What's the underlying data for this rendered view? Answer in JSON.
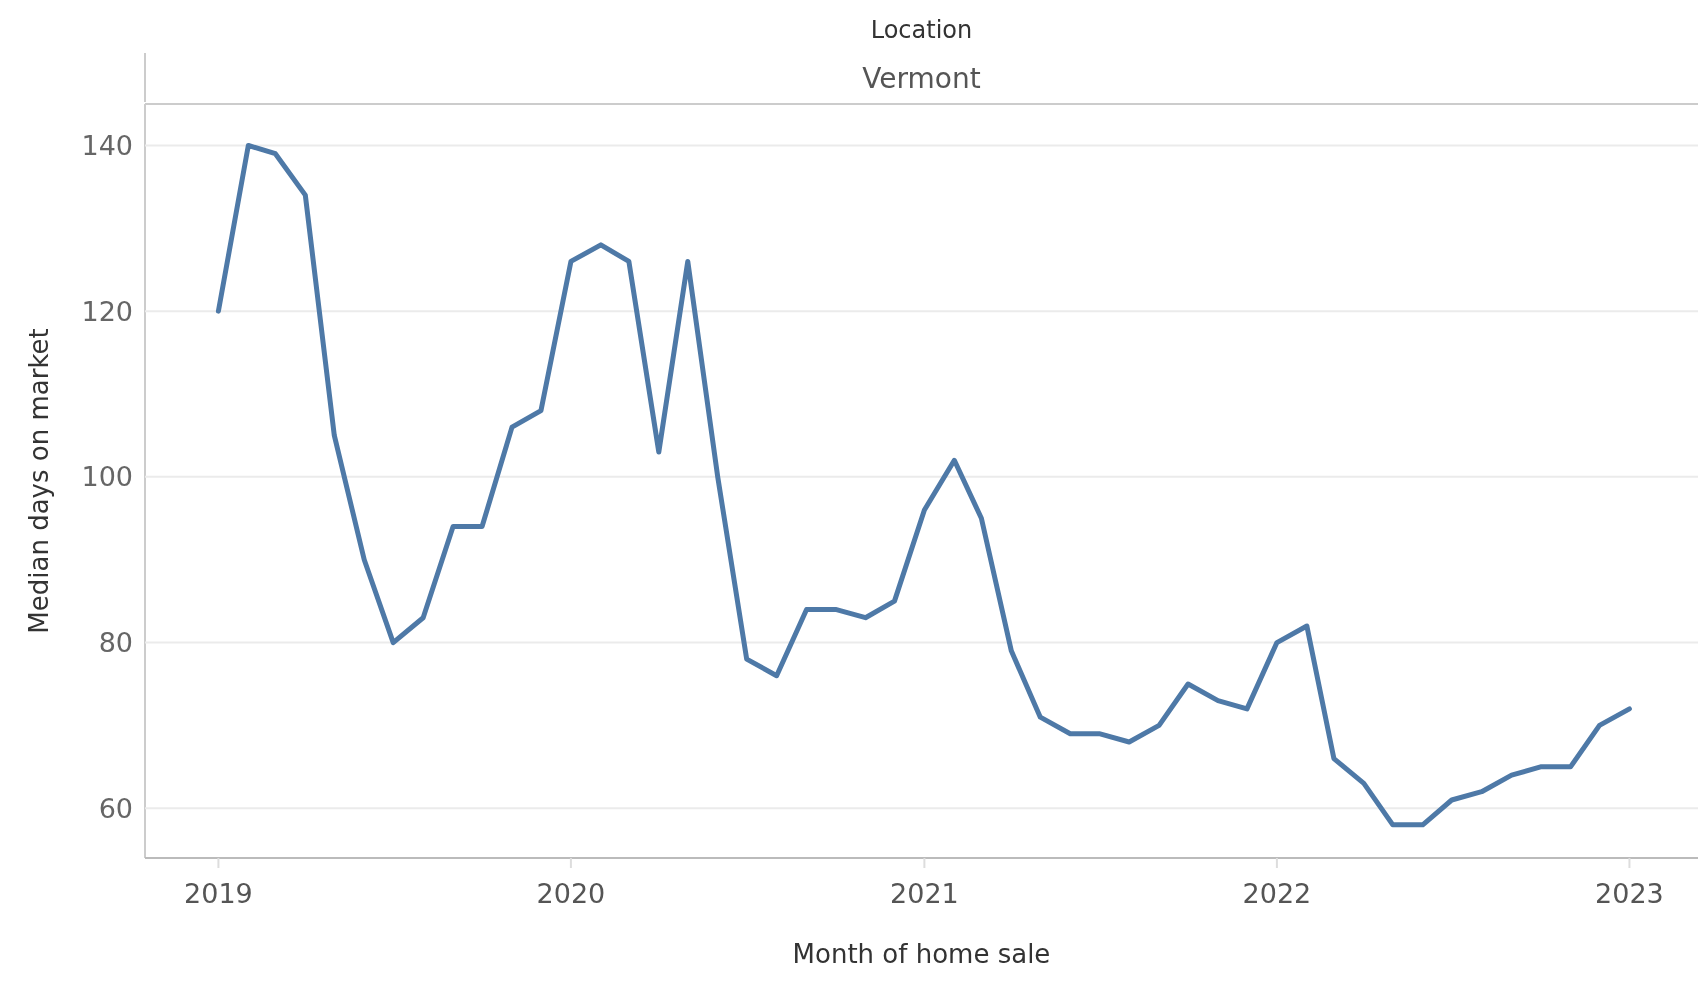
{
  "chart_data": {
    "type": "line",
    "title": "Location",
    "subtitle": "Vermont",
    "xlabel": "Month of home sale",
    "ylabel": "Median days on market",
    "x": [
      "2019-01",
      "2019-02",
      "2019-03",
      "2019-04",
      "2019-05",
      "2019-06",
      "2019-07",
      "2019-08",
      "2019-09",
      "2019-10",
      "2019-11",
      "2019-12",
      "2020-01",
      "2020-02",
      "2020-03",
      "2020-04",
      "2020-05",
      "2020-06",
      "2020-07",
      "2020-08",
      "2020-09",
      "2020-10",
      "2020-11",
      "2020-12",
      "2021-01",
      "2021-02",
      "2021-03",
      "2021-04",
      "2021-05",
      "2021-06",
      "2021-07",
      "2021-08",
      "2021-09",
      "2021-10",
      "2021-11",
      "2021-12",
      "2022-01",
      "2022-02",
      "2022-03",
      "2022-04",
      "2022-05",
      "2022-06",
      "2022-07",
      "2022-08",
      "2022-09",
      "2022-10",
      "2022-11",
      "2022-12",
      "2023-01"
    ],
    "series": [
      {
        "color": "#4e79a7",
        "values": [
          120,
          140,
          139,
          134,
          105,
          90,
          80,
          83,
          94,
          94,
          106,
          108,
          126,
          128,
          126,
          103,
          126,
          100,
          78,
          76,
          84,
          84,
          83,
          85,
          96,
          102,
          95,
          79,
          71,
          69,
          69,
          68,
          70,
          75,
          73,
          72,
          80,
          82,
          66,
          63,
          58,
          58,
          61,
          62,
          64,
          65,
          65,
          70,
          72
        ]
      }
    ],
    "xlim": [
      "2018-10-17",
      "2023-03-13"
    ],
    "ylim": [
      54,
      145
    ],
    "xticks": [
      {
        "value": "2019-01",
        "label": "2019"
      },
      {
        "value": "2020-01",
        "label": "2020"
      },
      {
        "value": "2021-01",
        "label": "2021"
      },
      {
        "value": "2022-01",
        "label": "2022"
      },
      {
        "value": "2023-01",
        "label": "2023"
      }
    ],
    "yticks": [
      60,
      80,
      100,
      120,
      140
    ],
    "grid": "y",
    "marker": "none",
    "line_style": "solid"
  }
}
